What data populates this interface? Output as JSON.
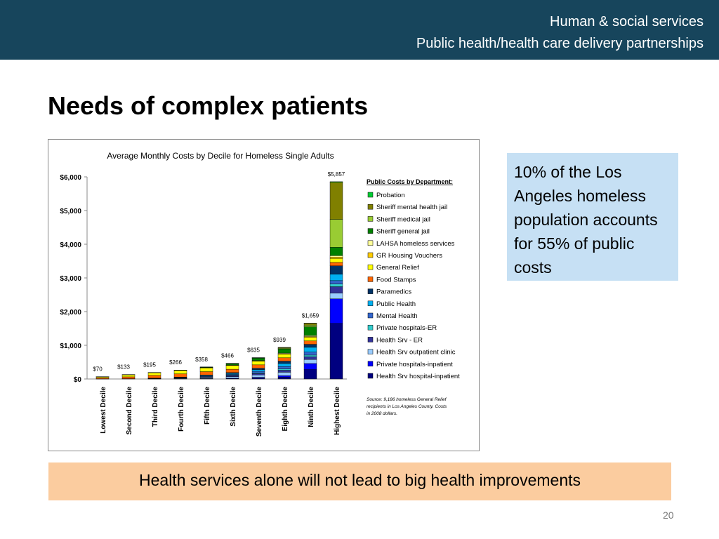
{
  "slide": {
    "header_lines": [
      "Human & social services",
      "Public health/health care delivery partnerships"
    ],
    "title": "Needs of complex patients",
    "callout": "10% of the Los Angeles homeless population accounts for 55% of public costs",
    "banner": "Health services alone will not lead to big health improvements",
    "page_number": "20"
  },
  "chart_data": {
    "type": "stacked_bar",
    "title": "Average Monthly Costs by Decile for Homeless Single Adults",
    "legend_title": "Public Costs by Department:",
    "note_lines": [
      "Source: 9,186 homeless General Relief",
      "recipients in Los Angeles County.  Costs",
      "in 2008 dollars."
    ],
    "categories": [
      "Lowest Decile",
      "Second Decile",
      "Third Decile",
      "Fourth Decile",
      "Fifth Decile",
      "Sixth Decile",
      "Seventh Decile",
      "Eighth Decile",
      "Ninth Decile",
      "Highest Decile"
    ],
    "totals": [
      70,
      133,
      195,
      266,
      358,
      466,
      635,
      939,
      1659,
      5857
    ],
    "total_labels": [
      "$70",
      "$133",
      "$195",
      "$266",
      "$358",
      "$466",
      "$635",
      "$939",
      "$1,659",
      "$5,857"
    ],
    "ylim": [
      0,
      6000
    ],
    "yticks": [
      {
        "value": 0,
        "label": "$0"
      },
      {
        "value": 1000,
        "label": "$1,000"
      },
      {
        "value": 2000,
        "label": "$2,000"
      },
      {
        "value": 3000,
        "label": "$3,000"
      },
      {
        "value": 4000,
        "label": "$4,000"
      },
      {
        "value": 5000,
        "label": "$5,000"
      },
      {
        "value": 6000,
        "label": "$6,000"
      }
    ],
    "series": [
      {
        "name": "Health Srv hospital-inpatient",
        "color": "#000080",
        "values": [
          0,
          0,
          1,
          3,
          8,
          15,
          30,
          60,
          280,
          1650
        ]
      },
      {
        "name": "Private hospitals-inpatient",
        "color": "#0000ff",
        "values": [
          0,
          0,
          1,
          2,
          5,
          10,
          20,
          40,
          180,
          730
        ]
      },
      {
        "name": "Health Srv outpatient clinic",
        "color": "#99ccff",
        "values": [
          1,
          3,
          8,
          15,
          30,
          45,
          70,
          100,
          120,
          170
        ]
      },
      {
        "name": "Health Srv - ER",
        "color": "#333399",
        "values": [
          0,
          1,
          3,
          8,
          15,
          25,
          40,
          60,
          80,
          190
        ]
      },
      {
        "name": "Private hospitals-ER",
        "color": "#33cccc",
        "values": [
          0,
          0,
          1,
          2,
          5,
          10,
          20,
          40,
          50,
          80
        ]
      },
      {
        "name": "Mental Health",
        "color": "#3366cc",
        "values": [
          1,
          2,
          5,
          10,
          20,
          30,
          50,
          70,
          90,
          100
        ]
      },
      {
        "name": "Public Health",
        "color": "#00b0f0",
        "values": [
          1,
          2,
          5,
          10,
          20,
          30,
          50,
          90,
          140,
          190
        ]
      },
      {
        "name": "Paramedics",
        "color": "#003366",
        "values": [
          0,
          1,
          3,
          8,
          15,
          25,
          40,
          70,
          90,
          250
        ]
      },
      {
        "name": "Food Stamps",
        "color": "#ff6600",
        "values": [
          30,
          55,
          80,
          95,
          100,
          100,
          100,
          100,
          100,
          100
        ]
      },
      {
        "name": "General Relief",
        "color": "#ffff00",
        "values": [
          30,
          60,
          80,
          100,
          110,
          110,
          110,
          110,
          110,
          120
        ]
      },
      {
        "name": "GR Housing Vouchers",
        "color": "#ffcc00",
        "values": [
          1,
          1,
          1,
          1,
          3,
          5,
          5,
          10,
          20,
          40
        ]
      },
      {
        "name": "LAHSA homeless services",
        "color": "#ffff99",
        "values": [
          2,
          2,
          2,
          3,
          5,
          10,
          15,
          20,
          30,
          40
        ]
      },
      {
        "name": "Sheriff general jail",
        "color": "#008000",
        "values": [
          1,
          1,
          2,
          5,
          15,
          40,
          70,
          120,
          260,
          250
        ]
      },
      {
        "name": "Sheriff medical jail",
        "color": "#99cc33",
        "values": [
          0,
          0,
          0,
          0,
          1,
          3,
          5,
          20,
          50,
          830
        ]
      },
      {
        "name": "Sheriff mental health jail",
        "color": "#808000",
        "values": [
          0,
          0,
          0,
          0,
          1,
          3,
          5,
          20,
          50,
          1100
        ]
      },
      {
        "name": "Probation",
        "color": "#00cc33",
        "values": [
          3,
          5,
          3,
          4,
          5,
          5,
          5,
          9,
          9,
          17
        ]
      }
    ]
  }
}
